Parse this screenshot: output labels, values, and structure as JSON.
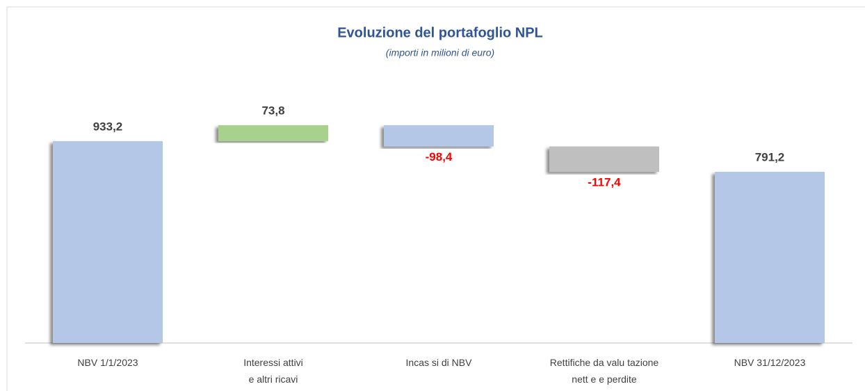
{
  "chart_data": {
    "type": "waterfall",
    "title": "Evoluzione del portafoglio NPL",
    "subtitle": "(importi in milioni di euro)",
    "categories": [
      "NBV 1/1/2023",
      "Interessi attivi\ne altri ricavi",
      "Incas si di NBV",
      "Rettifiche da valu tazione\nnett e e perdite",
      "NBV 31/12/2023"
    ],
    "values": [
      933.2,
      73.8,
      -98.4,
      -117.4,
      791.2
    ],
    "value_labels": [
      "933,2",
      "73,8",
      "-98,4",
      "-117,4",
      "791,2"
    ],
    "measure": [
      "absolute",
      "relative",
      "relative",
      "relative",
      "absolute"
    ],
    "colors": [
      "#b4c7e7",
      "#a9d18e",
      "#b4c7e7",
      "#bfbfbf",
      "#b4c7e7"
    ],
    "ylim": [
      0,
      1100
    ]
  }
}
